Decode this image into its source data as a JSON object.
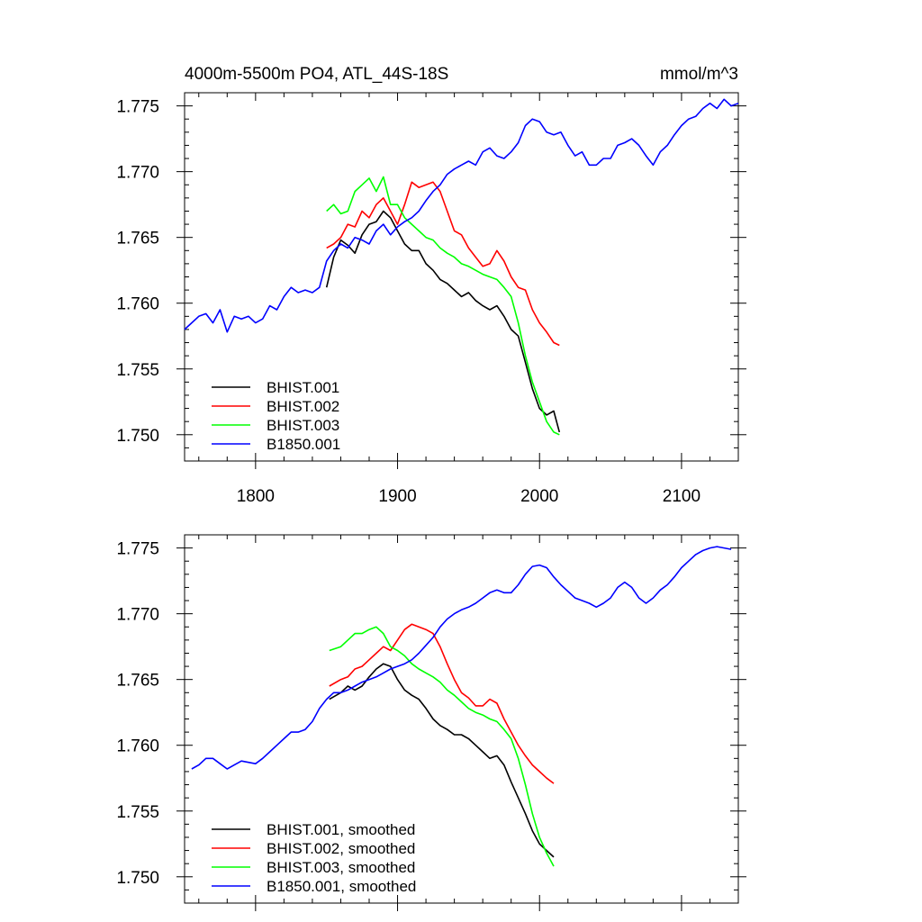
{
  "chart_data": [
    {
      "type": "line",
      "title": "4000m-5500m PO4, ATL_44S-18S",
      "units": "mmol/m^3",
      "xlabel": "",
      "ylabel": "",
      "xlim": [
        1750,
        2140
      ],
      "ylim": [
        1.748,
        1.776
      ],
      "x_ticks": [
        1800,
        1900,
        2000,
        2100
      ],
      "x_tick_labels": [
        "1800",
        "1900",
        "2000",
        "2100"
      ],
      "y_ticks": [
        1.75,
        1.755,
        1.76,
        1.765,
        1.77,
        1.775
      ],
      "y_tick_labels": [
        "1.750",
        "1.755",
        "1.760",
        "1.765",
        "1.770",
        "1.775"
      ],
      "grid": false,
      "legend_position": "bottom-left",
      "series": [
        {
          "name": "BHIST.001",
          "color": "#000000",
          "x": [
            1850,
            1855,
            1860,
            1865,
            1870,
            1875,
            1880,
            1885,
            1890,
            1895,
            1900,
            1905,
            1910,
            1915,
            1920,
            1925,
            1930,
            1935,
            1940,
            1945,
            1950,
            1955,
            1960,
            1965,
            1970,
            1975,
            1980,
            1985,
            1990,
            1995,
            2000,
            2005,
            2010,
            2014
          ],
          "y": [
            1.7612,
            1.7635,
            1.7648,
            1.7644,
            1.7638,
            1.7652,
            1.766,
            1.7662,
            1.767,
            1.7665,
            1.7655,
            1.7645,
            1.764,
            1.764,
            1.763,
            1.7625,
            1.7618,
            1.7615,
            1.761,
            1.7605,
            1.7608,
            1.7602,
            1.7598,
            1.7595,
            1.7598,
            1.759,
            1.758,
            1.7575,
            1.7555,
            1.7535,
            1.752,
            1.7515,
            1.7518,
            1.7502
          ]
        },
        {
          "name": "BHIST.002",
          "color": "#ff0000",
          "x": [
            1850,
            1855,
            1860,
            1865,
            1870,
            1875,
            1880,
            1885,
            1890,
            1895,
            1900,
            1905,
            1910,
            1915,
            1920,
            1925,
            1930,
            1935,
            1940,
            1945,
            1950,
            1955,
            1960,
            1965,
            1970,
            1975,
            1980,
            1985,
            1990,
            1995,
            2000,
            2005,
            2010,
            2014
          ],
          "y": [
            1.7642,
            1.7645,
            1.765,
            1.766,
            1.7658,
            1.767,
            1.7665,
            1.7675,
            1.768,
            1.767,
            1.766,
            1.7675,
            1.7692,
            1.7688,
            1.769,
            1.7692,
            1.7685,
            1.767,
            1.7655,
            1.7652,
            1.7642,
            1.7635,
            1.7628,
            1.763,
            1.764,
            1.7632,
            1.762,
            1.7612,
            1.761,
            1.7595,
            1.7585,
            1.7578,
            1.757,
            1.7568
          ]
        },
        {
          "name": "BHIST.003",
          "color": "#00ff00",
          "x": [
            1850,
            1855,
            1860,
            1865,
            1870,
            1875,
            1880,
            1885,
            1890,
            1895,
            1900,
            1905,
            1910,
            1915,
            1920,
            1925,
            1930,
            1935,
            1940,
            1945,
            1950,
            1955,
            1960,
            1965,
            1970,
            1975,
            1980,
            1985,
            1990,
            1995,
            2000,
            2005,
            2010,
            2014
          ],
          "y": [
            1.767,
            1.7675,
            1.7668,
            1.767,
            1.7685,
            1.769,
            1.7695,
            1.7685,
            1.7696,
            1.7675,
            1.7675,
            1.7665,
            1.766,
            1.7655,
            1.765,
            1.7648,
            1.7642,
            1.7638,
            1.7635,
            1.763,
            1.7628,
            1.7625,
            1.7622,
            1.762,
            1.7618,
            1.7612,
            1.7605,
            1.7585,
            1.756,
            1.754,
            1.7525,
            1.751,
            1.7502,
            1.75
          ]
        },
        {
          "name": "B1850.001",
          "color": "#0000ff",
          "x": [
            1750,
            1755,
            1760,
            1765,
            1770,
            1775,
            1780,
            1785,
            1790,
            1795,
            1800,
            1805,
            1810,
            1815,
            1820,
            1825,
            1830,
            1835,
            1840,
            1845,
            1850,
            1855,
            1860,
            1865,
            1870,
            1875,
            1880,
            1885,
            1890,
            1895,
            1900,
            1905,
            1910,
            1915,
            1920,
            1925,
            1930,
            1935,
            1940,
            1945,
            1950,
            1955,
            1960,
            1965,
            1970,
            1975,
            1980,
            1985,
            1990,
            1995,
            2000,
            2005,
            2010,
            2015,
            2020,
            2025,
            2030,
            2035,
            2040,
            2045,
            2050,
            2055,
            2060,
            2065,
            2070,
            2075,
            2080,
            2085,
            2090,
            2095,
            2100,
            2105,
            2110,
            2115,
            2120,
            2125,
            2130,
            2135,
            2140
          ],
          "y": [
            1.758,
            1.7585,
            1.759,
            1.7592,
            1.7585,
            1.7595,
            1.7578,
            1.759,
            1.7588,
            1.759,
            1.7585,
            1.7588,
            1.7598,
            1.7595,
            1.7605,
            1.7612,
            1.7608,
            1.761,
            1.7608,
            1.7612,
            1.7632,
            1.764,
            1.7645,
            1.7642,
            1.765,
            1.7648,
            1.7645,
            1.7655,
            1.766,
            1.7652,
            1.7658,
            1.7662,
            1.7665,
            1.767,
            1.7678,
            1.7685,
            1.769,
            1.7698,
            1.7702,
            1.7705,
            1.7708,
            1.7705,
            1.7715,
            1.7718,
            1.7712,
            1.771,
            1.7715,
            1.7722,
            1.7735,
            1.774,
            1.7738,
            1.773,
            1.7728,
            1.773,
            1.772,
            1.7712,
            1.7715,
            1.7705,
            1.7705,
            1.771,
            1.771,
            1.772,
            1.7722,
            1.7725,
            1.772,
            1.7712,
            1.7705,
            1.7715,
            1.772,
            1.7728,
            1.7735,
            1.774,
            1.7742,
            1.7748,
            1.7752,
            1.7748,
            1.7755,
            1.775,
            1.7752
          ]
        }
      ]
    },
    {
      "type": "line",
      "title": "",
      "xlabel": "",
      "ylabel": "",
      "xlim": [
        1750,
        2140
      ],
      "ylim": [
        1.748,
        1.776
      ],
      "x_ticks": [
        1800,
        1900,
        2000,
        2100
      ],
      "y_ticks": [
        1.75,
        1.755,
        1.76,
        1.765,
        1.77,
        1.775
      ],
      "y_tick_labels": [
        "1.750",
        "1.755",
        "1.760",
        "1.765",
        "1.770",
        "1.775"
      ],
      "grid": false,
      "legend_position": "bottom-left",
      "series": [
        {
          "name": "BHIST.001, smoothed",
          "color": "#000000",
          "x": [
            1852,
            1860,
            1865,
            1870,
            1875,
            1880,
            1885,
            1890,
            1895,
            1900,
            1905,
            1910,
            1915,
            1920,
            1925,
            1930,
            1935,
            1940,
            1945,
            1950,
            1955,
            1960,
            1965,
            1970,
            1975,
            1980,
            1985,
            1990,
            1995,
            2000,
            2005,
            2010
          ],
          "y": [
            1.7635,
            1.764,
            1.7645,
            1.7642,
            1.7645,
            1.7652,
            1.7658,
            1.7662,
            1.766,
            1.765,
            1.7642,
            1.7638,
            1.7635,
            1.7628,
            1.762,
            1.7615,
            1.7612,
            1.7608,
            1.7608,
            1.7605,
            1.76,
            1.7595,
            1.759,
            1.7592,
            1.7585,
            1.7572,
            1.756,
            1.7548,
            1.7535,
            1.7525,
            1.752,
            1.7515
          ]
        },
        {
          "name": "BHIST.002, smoothed",
          "color": "#ff0000",
          "x": [
            1852,
            1860,
            1865,
            1870,
            1875,
            1880,
            1885,
            1890,
            1895,
            1900,
            1905,
            1910,
            1915,
            1920,
            1925,
            1930,
            1935,
            1940,
            1945,
            1950,
            1955,
            1960,
            1965,
            1970,
            1975,
            1980,
            1985,
            1990,
            1995,
            2000,
            2005,
            2010
          ],
          "y": [
            1.7645,
            1.765,
            1.7652,
            1.7658,
            1.766,
            1.7665,
            1.767,
            1.7675,
            1.7672,
            1.768,
            1.7688,
            1.7692,
            1.769,
            1.7688,
            1.7685,
            1.7675,
            1.7662,
            1.765,
            1.764,
            1.7636,
            1.763,
            1.763,
            1.7635,
            1.7632,
            1.762,
            1.761,
            1.76,
            1.7592,
            1.7585,
            1.758,
            1.7575,
            1.7571
          ]
        },
        {
          "name": "BHIST.003, smoothed",
          "color": "#00ff00",
          "x": [
            1852,
            1860,
            1865,
            1870,
            1875,
            1880,
            1885,
            1890,
            1895,
            1900,
            1905,
            1910,
            1915,
            1920,
            1925,
            1930,
            1935,
            1940,
            1945,
            1950,
            1955,
            1960,
            1965,
            1970,
            1975,
            1980,
            1985,
            1990,
            1995,
            2000,
            2005,
            2010
          ],
          "y": [
            1.7672,
            1.7675,
            1.768,
            1.7685,
            1.7685,
            1.7688,
            1.769,
            1.7685,
            1.7675,
            1.7672,
            1.7668,
            1.7662,
            1.7658,
            1.7655,
            1.7652,
            1.7648,
            1.7642,
            1.7638,
            1.7633,
            1.7628,
            1.7625,
            1.7623,
            1.762,
            1.7618,
            1.7612,
            1.7605,
            1.759,
            1.757,
            1.7548,
            1.753,
            1.7518,
            1.7508
          ]
        },
        {
          "name": "B1850.001, smoothed",
          "color": "#0000ff",
          "x": [
            1755,
            1760,
            1765,
            1770,
            1775,
            1780,
            1785,
            1790,
            1795,
            1800,
            1805,
            1810,
            1815,
            1820,
            1825,
            1830,
            1835,
            1840,
            1845,
            1850,
            1855,
            1860,
            1865,
            1870,
            1875,
            1880,
            1885,
            1890,
            1895,
            1900,
            1905,
            1910,
            1915,
            1920,
            1925,
            1930,
            1935,
            1940,
            1945,
            1950,
            1955,
            1960,
            1965,
            1970,
            1975,
            1980,
            1985,
            1990,
            1995,
            2000,
            2005,
            2010,
            2015,
            2020,
            2025,
            2030,
            2035,
            2040,
            2045,
            2050,
            2055,
            2060,
            2065,
            2070,
            2075,
            2080,
            2085,
            2090,
            2095,
            2100,
            2105,
            2110,
            2115,
            2120,
            2125,
            2130,
            2135
          ],
          "y": [
            1.7582,
            1.7585,
            1.759,
            1.759,
            1.7586,
            1.7582,
            1.7585,
            1.7588,
            1.7587,
            1.7586,
            1.759,
            1.7595,
            1.76,
            1.7605,
            1.761,
            1.761,
            1.7612,
            1.7618,
            1.7628,
            1.7635,
            1.764,
            1.764,
            1.7642,
            1.7645,
            1.7648,
            1.765,
            1.7652,
            1.7655,
            1.7658,
            1.766,
            1.7662,
            1.7665,
            1.767,
            1.7676,
            1.7682,
            1.769,
            1.7696,
            1.77,
            1.7703,
            1.7705,
            1.7708,
            1.7712,
            1.7716,
            1.7718,
            1.7716,
            1.7716,
            1.7722,
            1.773,
            1.7736,
            1.7737,
            1.7735,
            1.7728,
            1.7722,
            1.7717,
            1.7712,
            1.771,
            1.7708,
            1.7705,
            1.7708,
            1.7712,
            1.772,
            1.7724,
            1.772,
            1.7712,
            1.7708,
            1.7712,
            1.7718,
            1.7722,
            1.7728,
            1.7735,
            1.774,
            1.7745,
            1.7748,
            1.775,
            1.7751,
            1.775,
            1.7749
          ]
        }
      ]
    }
  ]
}
